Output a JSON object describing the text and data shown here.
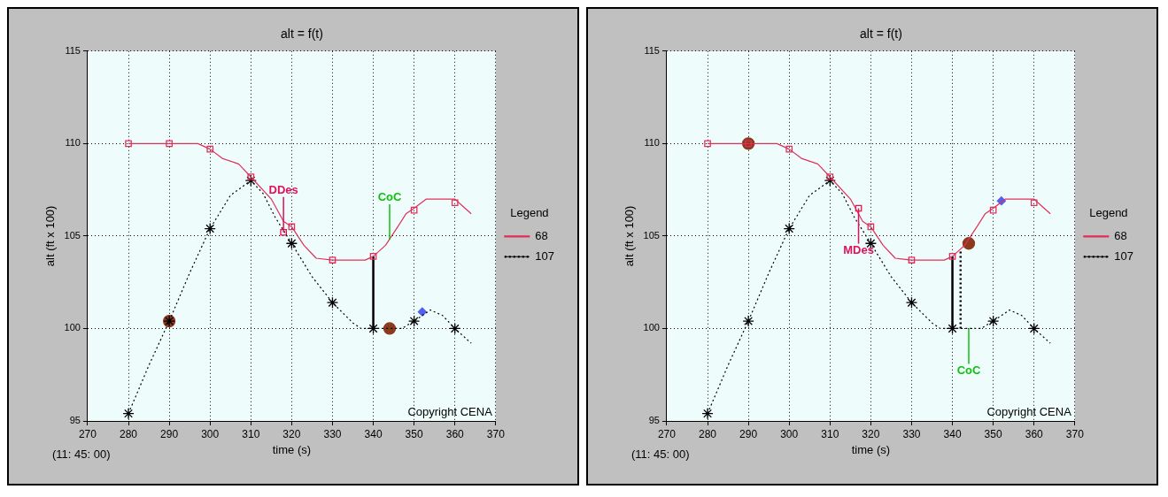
{
  "chart_data": [
    {
      "type": "line",
      "title": "alt = f(t)",
      "xlabel": "time (s)",
      "ylabel": "alt (ft x 100)",
      "legend_title": "Legend",
      "legend": "right",
      "grid": true,
      "xlim": [
        270,
        370
      ],
      "xticks": [
        270,
        280,
        290,
        300,
        310,
        320,
        330,
        340,
        350,
        360,
        370
      ],
      "ylim": [
        95,
        115
      ],
      "yticks": [
        95,
        100,
        105,
        110,
        115
      ],
      "annotations": [
        "(11: 45: 00)",
        "Copyright CENA",
        {
          "text": "DDes",
          "x": 318,
          "y": 105.2
        },
        {
          "text": "CoC",
          "x": 344,
          "y": 104.8
        }
      ],
      "series": [
        {
          "name": "68",
          "type": "line",
          "color": "#e0305a",
          "line_style": "solid",
          "marker": "none",
          "x": [
            280,
            290,
            297,
            300,
            303,
            307,
            310,
            315,
            318,
            320,
            323,
            326,
            330,
            338,
            340,
            343,
            346,
            348,
            350,
            353,
            360,
            362,
            364
          ],
          "values": [
            110,
            110,
            110,
            109.7,
            109.2,
            108.9,
            108.2,
            107,
            105.8,
            105.5,
            104.5,
            103.8,
            103.7,
            103.7,
            103.9,
            104.5,
            105.5,
            106.2,
            106.5,
            107,
            107,
            106.6,
            106.2
          ]
        },
        {
          "name": "107",
          "type": "line",
          "color": "#000000",
          "line_style": "dotted",
          "marker": "none",
          "x": [
            280,
            285,
            290,
            295,
            300,
            305,
            310,
            313,
            316,
            320,
            325,
            330,
            335,
            337,
            347,
            350,
            354,
            357,
            360,
            364
          ],
          "values": [
            95.4,
            98,
            100.4,
            103,
            105.4,
            107.2,
            108,
            107.3,
            106,
            104.6,
            102.8,
            101.4,
            100.3,
            100,
            100,
            100.4,
            101,
            100.7,
            100,
            99.2
          ]
        },
        {
          "type": "scatter",
          "color": "#e0305a",
          "marker": "square",
          "x": [
            280,
            290,
            300,
            310,
            320,
            330,
            340,
            350,
            360
          ],
          "values": [
            110,
            110,
            109.7,
            108.2,
            105.5,
            103.7,
            103.9,
            106.4,
            106.8
          ]
        },
        {
          "type": "scatter",
          "color": "#000000",
          "marker": "cross",
          "x": [
            280,
            290,
            300,
            310,
            320,
            330,
            340,
            350,
            360
          ],
          "values": [
            95.4,
            100.4,
            105.4,
            108,
            104.6,
            101.4,
            100,
            100.4,
            100
          ]
        },
        {
          "color": "#000000",
          "line_style": "solid",
          "marker": "none",
          "x": [
            340,
            340
          ],
          "values": [
            100,
            103.9
          ]
        },
        {
          "type": "scatter",
          "color": "#e8104a",
          "marker": "square",
          "x": [
            318
          ],
          "values": [
            105.2
          ]
        },
        {
          "type": "scatter",
          "color": "#8b3a1e",
          "marker": "circle",
          "x": [
            290,
            344
          ],
          "values": [
            100.4,
            100
          ]
        },
        {
          "type": "scatter",
          "color": "#5060f0",
          "marker": "diamond",
          "x": [
            352
          ],
          "values": [
            100.9
          ]
        }
      ]
    },
    {
      "type": "line",
      "title": "alt = f(t)",
      "xlabel": "time (s)",
      "ylabel": "alt (ft x 100)",
      "legend_title": "Legend",
      "legend": "right",
      "grid": true,
      "xlim": [
        270,
        370
      ],
      "xticks": [
        270,
        280,
        290,
        300,
        310,
        320,
        330,
        340,
        350,
        360,
        370
      ],
      "ylim": [
        95,
        115
      ],
      "yticks": [
        95,
        100,
        105,
        110,
        115
      ],
      "annotations": [
        "(11: 45: 00)",
        "Copyright CENA",
        {
          "text": "MDes",
          "x": 317,
          "y": 106.5
        },
        {
          "text": "CoC",
          "x": 344,
          "y": 100
        }
      ],
      "series": [
        {
          "name": "68",
          "type": "line",
          "color": "#e0305a",
          "line_style": "solid",
          "marker": "none",
          "x": [
            280,
            290,
            297,
            300,
            303,
            307,
            310,
            315,
            318,
            320,
            323,
            326,
            330,
            338,
            340,
            343,
            346,
            348,
            350,
            353,
            360,
            362,
            364
          ],
          "values": [
            110,
            110,
            110,
            109.7,
            109.2,
            108.9,
            108.2,
            107,
            105.8,
            105.5,
            104.5,
            103.8,
            103.7,
            103.7,
            103.9,
            104.5,
            105.5,
            106.2,
            106.5,
            107,
            107,
            106.6,
            106.2
          ]
        },
        {
          "name": "107",
          "type": "line",
          "color": "#000000",
          "line_style": "dotted",
          "marker": "none",
          "x": [
            280,
            285,
            290,
            295,
            300,
            305,
            310,
            313,
            316,
            320,
            325,
            330,
            335,
            337,
            347,
            350,
            354,
            357,
            360,
            364
          ],
          "values": [
            95.4,
            98,
            100.4,
            103,
            105.4,
            107.2,
            108,
            107.3,
            106,
            104.6,
            102.8,
            101.4,
            100.3,
            100,
            100,
            100.4,
            101,
            100.7,
            100,
            99.2
          ]
        },
        {
          "type": "scatter",
          "color": "#e0305a",
          "marker": "square",
          "x": [
            280,
            290,
            300,
            310,
            320,
            330,
            340,
            350,
            360
          ],
          "values": [
            110,
            110,
            109.7,
            108.2,
            105.5,
            103.7,
            103.9,
            106.4,
            106.8
          ]
        },
        {
          "type": "scatter",
          "color": "#000000",
          "marker": "cross",
          "x": [
            280,
            290,
            300,
            310,
            320,
            330,
            340,
            350,
            360
          ],
          "values": [
            95.4,
            100.4,
            105.4,
            108,
            104.6,
            101.4,
            100,
            100.4,
            100
          ]
        },
        {
          "color": "#000000",
          "line_style": "solid",
          "marker": "none",
          "x": [
            340,
            340
          ],
          "values": [
            100,
            103.9
          ]
        },
        {
          "color": "#000000",
          "line_style": "dotted",
          "marker": "none",
          "x": [
            342,
            342
          ],
          "values": [
            100,
            104.2
          ]
        },
        {
          "type": "scatter",
          "color": "#e8104a",
          "marker": "square",
          "x": [
            317
          ],
          "values": [
            106.5
          ]
        },
        {
          "type": "scatter",
          "color": "#8b3a1e",
          "marker": "circle",
          "x": [
            290,
            344
          ],
          "values": [
            110,
            104.6
          ]
        },
        {
          "type": "scatter",
          "color": "#5060f0",
          "marker": "diamond",
          "x": [
            352
          ],
          "values": [
            106.9
          ]
        }
      ]
    }
  ]
}
